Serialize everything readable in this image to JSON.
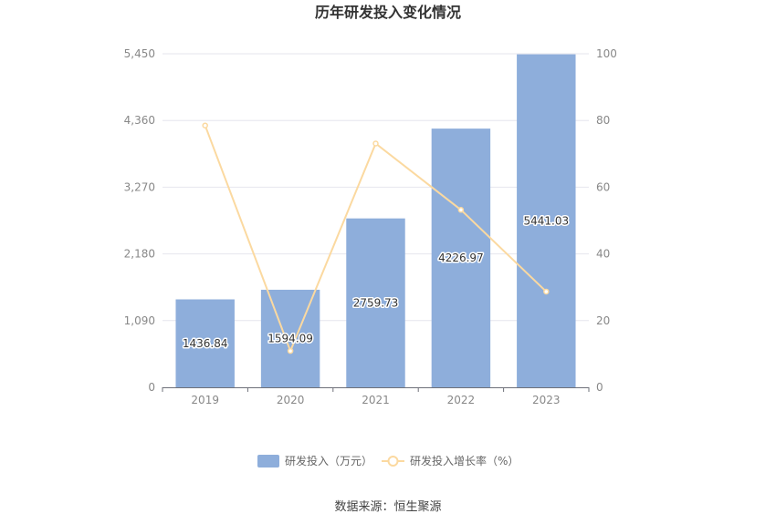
{
  "chart_data": {
    "type": "bar",
    "title": "历年研发投入变化情况",
    "categories": [
      "2019",
      "2020",
      "2021",
      "2022",
      "2023"
    ],
    "series": [
      {
        "name": "研发投入（万元）",
        "type": "bar",
        "axis": "left",
        "values": [
          1436.84,
          1594.09,
          2759.73,
          4226.97,
          5441.03
        ],
        "labels": [
          "1436.84",
          "1594.09",
          "2759.73",
          "4226.97",
          "5441.03"
        ],
        "color": "#8eaedb"
      },
      {
        "name": "研发投入增长率（%）",
        "type": "line",
        "axis": "right",
        "values": [
          78.5,
          10.9,
          73.1,
          53.2,
          28.7
        ],
        "color": "#fbd9a0"
      }
    ],
    "y_left": {
      "ticks": [
        0,
        1090,
        2180,
        3270,
        4360,
        5450
      ],
      "tick_labels": [
        "0",
        "1,090",
        "2,180",
        "3,270",
        "4,360",
        "5,450"
      ],
      "ylim": [
        0,
        5450
      ]
    },
    "y_right": {
      "ticks": [
        0,
        20,
        40,
        60,
        80,
        100
      ],
      "tick_labels": [
        "0",
        "20",
        "40",
        "60",
        "80",
        "100"
      ],
      "ylim": [
        0,
        100
      ]
    },
    "grid": true,
    "legend_position": "bottom-center"
  },
  "footer": {
    "source": "数据来源：恒生聚源"
  },
  "colors": {
    "grid": "#e6e6ee",
    "axis": "#6e7079",
    "tick_text": "#888888"
  }
}
